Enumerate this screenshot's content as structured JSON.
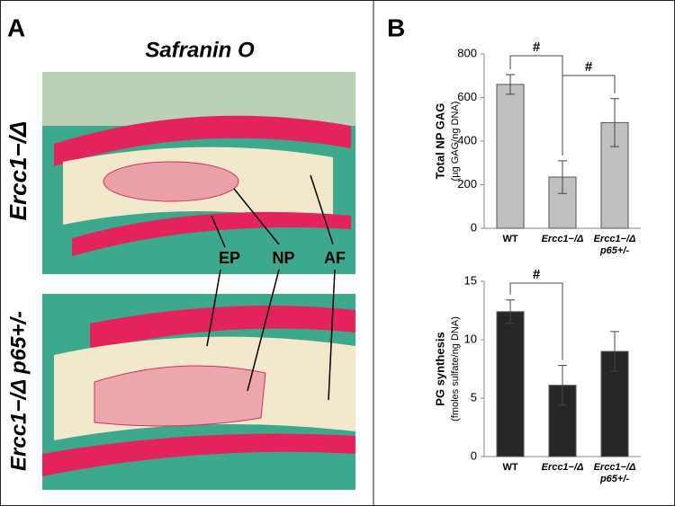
{
  "panel_a": {
    "letter": "A",
    "stain": "Safranin O",
    "rows": [
      "Ercc1−/Δ",
      "Ercc1−/Δ p65+/-"
    ],
    "regions": [
      "EP",
      "NP",
      "AF"
    ]
  },
  "panel_b": {
    "letter": "B"
  },
  "chart_data": [
    {
      "type": "bar",
      "ylabel": "Total NP GAG",
      "ylabel_sub": "(µg GAG/ng DNA)",
      "categories": [
        "WT",
        "Ercc1−/Δ",
        "Ercc1−/Δ p65+/-"
      ],
      "values": [
        660,
        235,
        485
      ],
      "errors": [
        45,
        75,
        110
      ],
      "color": "#c0c0c0",
      "ylim": [
        0,
        800
      ],
      "yticks": [
        0,
        200,
        400,
        600,
        800
      ],
      "annotations": [
        {
          "label": "#",
          "between": [
            0,
            1
          ]
        },
        {
          "label": "#",
          "between": [
            1,
            2
          ]
        }
      ]
    },
    {
      "type": "bar",
      "ylabel": "PG synthesis",
      "ylabel_sub": "(fmoles sulfate/ng DNA)",
      "categories": [
        "WT",
        "Ercc1−/Δ",
        "Ercc1−/Δ p65+/-"
      ],
      "values": [
        12.4,
        6.1,
        9.0
      ],
      "errors": [
        1.0,
        1.7,
        1.7
      ],
      "color": "#262626",
      "ylim": [
        0,
        15
      ],
      "yticks": [
        0,
        5,
        10,
        15
      ],
      "annotations": [
        {
          "label": "#",
          "between": [
            0,
            1
          ]
        }
      ]
    }
  ]
}
